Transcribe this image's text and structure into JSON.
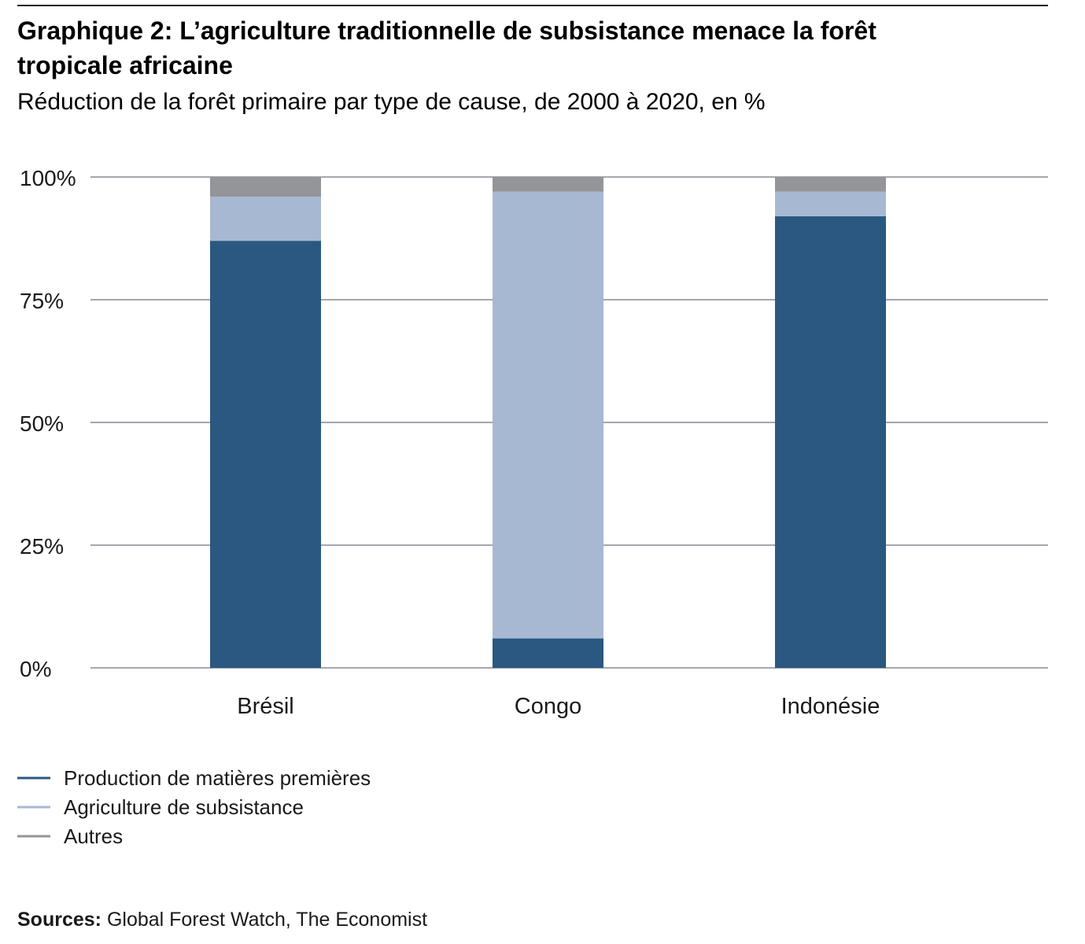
{
  "colors": {
    "production": "#2a5880",
    "subsistance": "#a7b9d2",
    "autres": "#939598",
    "grid": "#a6a6ad"
  },
  "chart_data": {
    "type": "bar",
    "stacked": true,
    "title": "Graphique 2: L’agriculture traditionnelle de subsistance menace la forêt tropicale africaine",
    "title_lines": [
      "Graphique 2: L’agriculture traditionnelle de subsistance menace la forêt",
      "tropicale africaine"
    ],
    "subtitle": "Réduction de la forêt primaire par type de cause, de 2000 à 2020, en %",
    "xlabel": "",
    "ylabel": "",
    "ylim": [
      0,
      100
    ],
    "yticks": [
      0,
      25,
      50,
      75,
      100
    ],
    "ytick_labels": [
      "0%",
      "25%",
      "50%",
      "75%",
      "100%"
    ],
    "grid": true,
    "categories": [
      "Brésil",
      "Congo",
      "Indonésie"
    ],
    "series": [
      {
        "name": "Production de matières premières",
        "color_key": "production",
        "values": [
          87,
          6,
          92
        ]
      },
      {
        "name": "Agriculture de subsistance",
        "color_key": "subsistance",
        "values": [
          9,
          91,
          5
        ]
      },
      {
        "name": "Autres",
        "color_key": "autres",
        "values": [
          4,
          3,
          3
        ]
      }
    ],
    "legend_position": "bottom-left"
  },
  "source": {
    "label": "Sources:",
    "text": "Global Forest Watch, The Economist"
  }
}
